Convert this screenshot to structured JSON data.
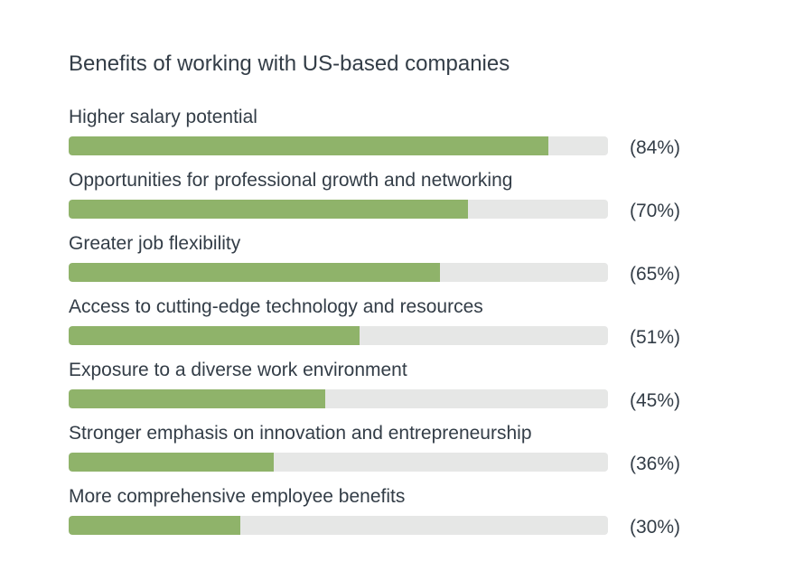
{
  "chart_data": {
    "type": "bar",
    "orientation": "horizontal",
    "title": "Benefits of working with US-based companies",
    "categories": [
      "Higher salary potential",
      "Opportunities for professional growth and networking",
      "Greater job flexibility",
      "Access to cutting-edge technology and resources",
      "Exposure to a diverse work environment",
      "Stronger emphasis on innovation and entrepreneurship",
      "More comprehensive employee benefits"
    ],
    "values": [
      84,
      70,
      65,
      51,
      45,
      36,
      30
    ],
    "value_labels": [
      "(84%)",
      "(70%)",
      "(65%)",
      "(51%)",
      "(45%)",
      "(36%)",
      "(30%)"
    ],
    "unit": "%",
    "colors": {
      "bar": "#8fb36a",
      "track": "#e6e7e6",
      "text": "#333d47"
    }
  }
}
